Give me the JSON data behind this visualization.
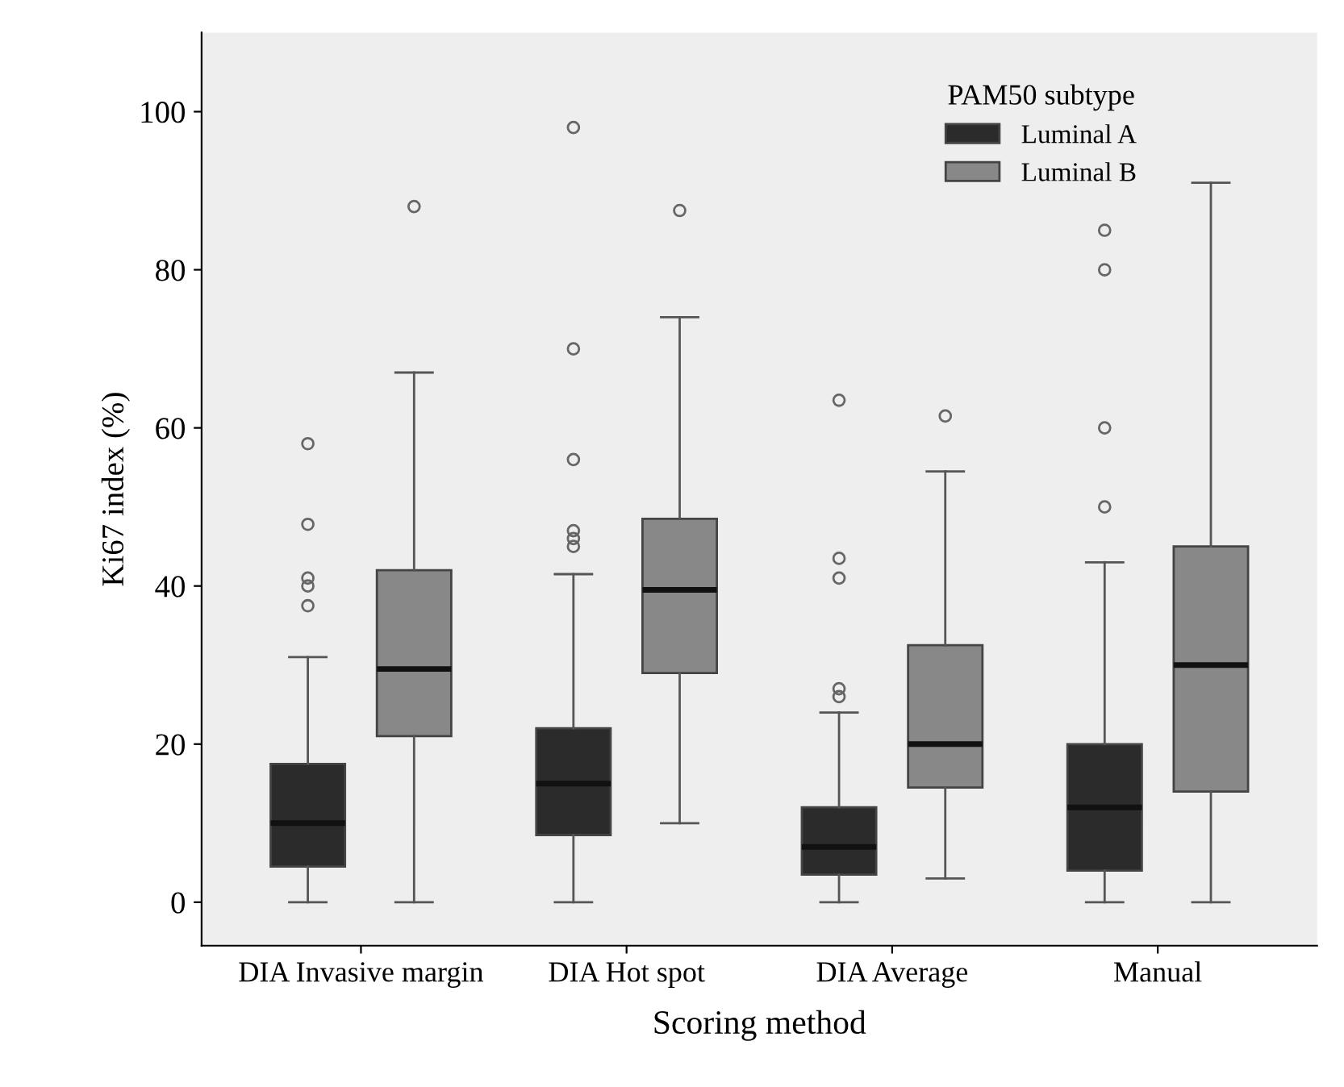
{
  "chart_data": {
    "type": "box",
    "xlabel": "Scoring method",
    "ylabel": "Ki67 index (%)",
    "legend_title": "PAM50 subtype",
    "categories": [
      "DIA Invasive margin",
      "DIA Hot spot",
      "DIA Average",
      "Manual"
    ],
    "series": [
      {
        "name": "Luminal A",
        "color": "#2b2b2b",
        "boxes": [
          {
            "low": 0,
            "q1": 4.5,
            "median": 10,
            "q3": 17.5,
            "high": 31,
            "outliers": [
              37.5,
              40,
              41,
              47.8,
              58
            ]
          },
          {
            "low": 0,
            "q1": 8.5,
            "median": 15,
            "q3": 22,
            "high": 41.5,
            "outliers": [
              45,
              46,
              47,
              56,
              70,
              98
            ]
          },
          {
            "low": 0,
            "q1": 3.5,
            "median": 7,
            "q3": 12,
            "high": 24,
            "outliers": [
              26,
              27,
              41,
              43.5,
              63.5
            ]
          },
          {
            "low": 0,
            "q1": 4,
            "median": 12,
            "q3": 20,
            "high": 43,
            "outliers": [
              50,
              60,
              80,
              85
            ]
          }
        ]
      },
      {
        "name": "Luminal B",
        "color": "#888888",
        "boxes": [
          {
            "low": 0,
            "q1": 21,
            "median": 29.5,
            "q3": 42,
            "high": 67,
            "outliers": [
              88
            ]
          },
          {
            "low": 10,
            "q1": 29,
            "median": 39.5,
            "q3": 48.5,
            "high": 74,
            "outliers": [
              87.5
            ]
          },
          {
            "low": 3,
            "q1": 14.5,
            "median": 20,
            "q3": 32.5,
            "high": 54.5,
            "outliers": [
              61.5
            ]
          },
          {
            "low": 0,
            "q1": 14,
            "median": 30,
            "q3": 45,
            "high": 91
          }
        ]
      }
    ],
    "ylim": [
      -5.5,
      110
    ],
    "yticks": [
      0,
      20,
      40,
      60,
      80,
      100
    ],
    "grid": false,
    "legend": "top right"
  }
}
